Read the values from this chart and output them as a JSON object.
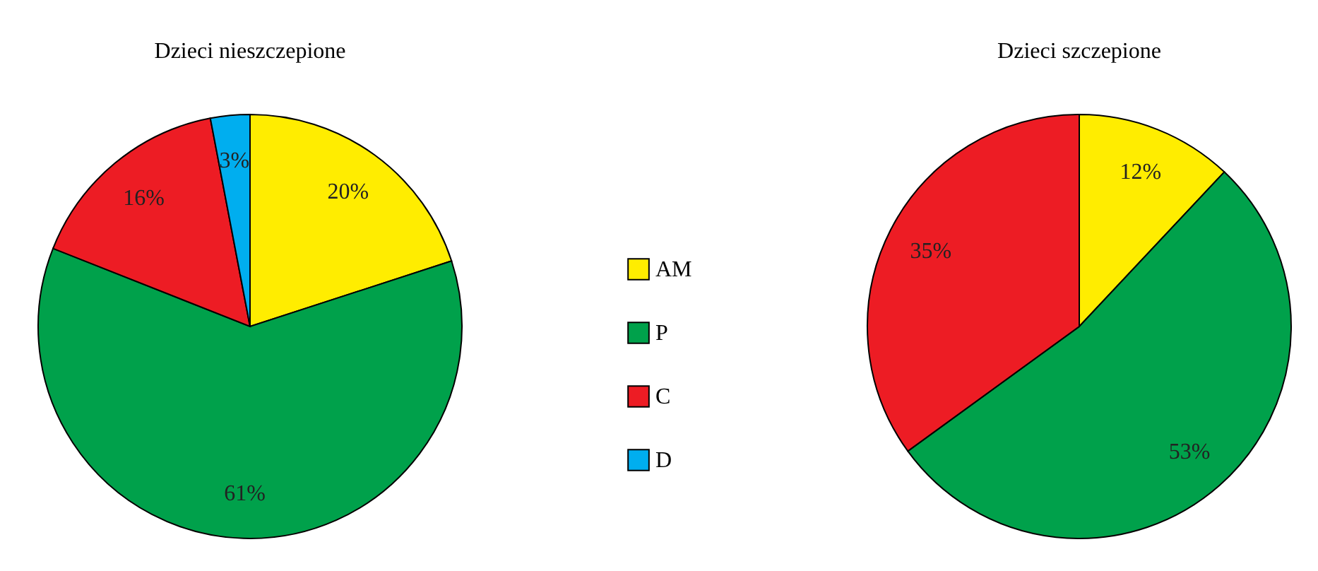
{
  "chart_data": [
    {
      "type": "pie",
      "title": "Dzieci nieszczepione",
      "categories": [
        "AM",
        "P",
        "C",
        "D"
      ],
      "values": [
        20,
        61,
        16,
        3
      ],
      "colors": [
        "#ffed00",
        "#00a14b",
        "#ed1c24",
        "#00aeef"
      ],
      "value_labels": [
        "20%",
        "61%",
        "16%",
        "3%"
      ],
      "legend": "right"
    },
    {
      "type": "pie",
      "title": "Dzieci szczepione",
      "categories": [
        null,
        null,
        null
      ],
      "values": [
        12,
        53,
        35
      ],
      "colors": [
        "#ffed00",
        "#00a14b",
        "#ed1c24"
      ],
      "value_labels": [
        "12%",
        "53%",
        "35%"
      ]
    }
  ]
}
